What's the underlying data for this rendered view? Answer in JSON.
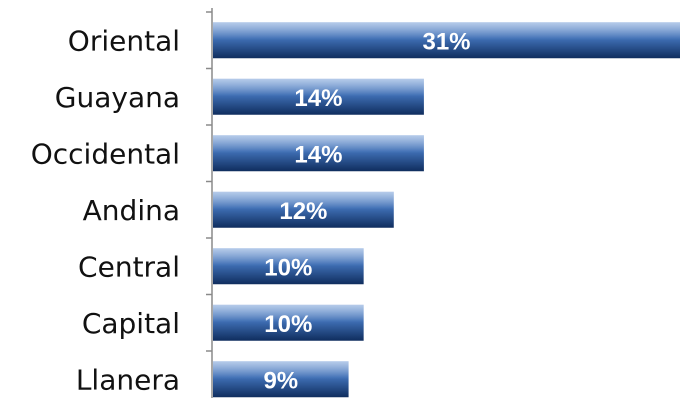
{
  "chart_data": {
    "type": "bar",
    "orientation": "horizontal",
    "categories": [
      "Oriental",
      "Guayana",
      "Occidental",
      "Andina",
      "Central",
      "Capital",
      "Llanera"
    ],
    "values": [
      31,
      14,
      14,
      12,
      10,
      10,
      9
    ],
    "value_labels": [
      "31%",
      "14%",
      "14%",
      "12%",
      "10%",
      "10%",
      "9%"
    ],
    "xlim": [
      0,
      31
    ],
    "grid": false,
    "legend": "none",
    "colors": {
      "bar_top": "#8fb0df",
      "bar_mid": "#3f6fb5",
      "bar_bottom": "#0f2d5e",
      "axis": "#8a8a8a"
    }
  }
}
